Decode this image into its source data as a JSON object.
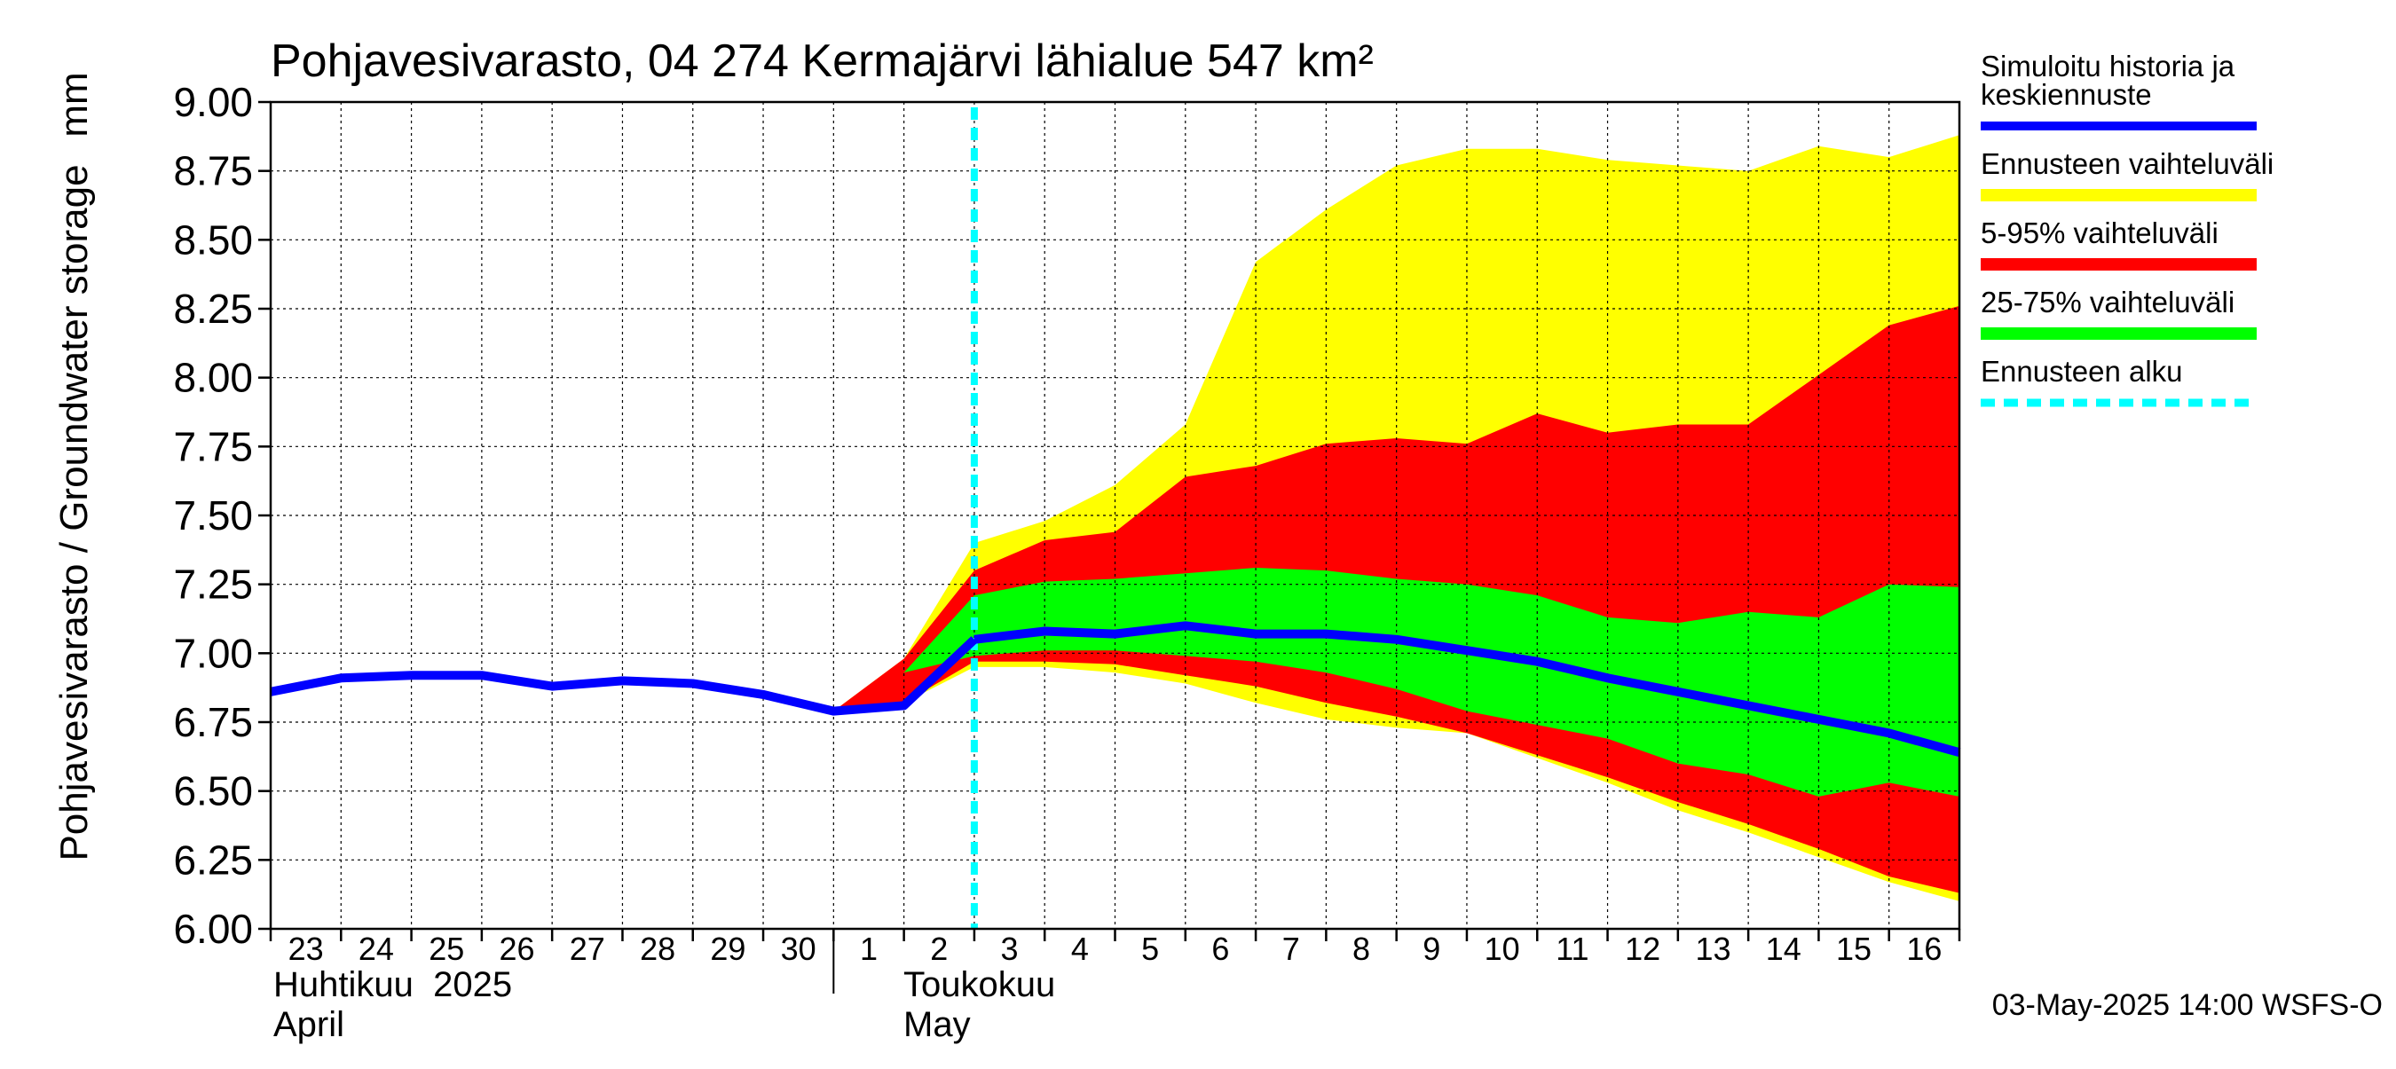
{
  "chart_data": {
    "type": "area",
    "title": "Pohjavesivarasto, 04 274 Kermajärvi lähialue 547 km²",
    "ylabel": "Pohjavesivarasto / Groundwater storage",
    "yunit": "mm",
    "ylim": [
      6.0,
      9.0
    ],
    "yticks": [
      "6.00",
      "6.25",
      "6.50",
      "6.75",
      "7.00",
      "7.25",
      "7.50",
      "7.75",
      "8.00",
      "8.25",
      "8.50",
      "8.75",
      "9.00"
    ],
    "grid": true,
    "legend_position": "right",
    "x_day_labels": [
      "23",
      "24",
      "25",
      "26",
      "27",
      "28",
      "29",
      "30",
      "1",
      "2",
      "3",
      "4",
      "5",
      "6",
      "7",
      "8",
      "9",
      "10",
      "11",
      "12",
      "13",
      "14",
      "15",
      "16"
    ],
    "x_dates": [
      "2025-04-23",
      "2025-04-24",
      "2025-04-25",
      "2025-04-26",
      "2025-04-27",
      "2025-04-28",
      "2025-04-29",
      "2025-04-30",
      "2025-05-01",
      "2025-05-02",
      "2025-05-03",
      "2025-05-04",
      "2025-05-05",
      "2025-05-06",
      "2025-05-07",
      "2025-05-08",
      "2025-05-09",
      "2025-05-10",
      "2025-05-11",
      "2025-05-12",
      "2025-05-13",
      "2025-05-14",
      "2025-05-15",
      "2025-05-16",
      "2025-05-17"
    ],
    "month_labels": [
      {
        "fi": "Huhtikuu  2025",
        "en": "April",
        "start_date": "2025-04-23"
      },
      {
        "fi": "Toukokuu",
        "en": "May",
        "start_date": "2025-05-02"
      }
    ],
    "forecast_start": "2025-05-03",
    "history": {
      "x": [
        "2025-04-23",
        "2025-04-24",
        "2025-04-25",
        "2025-04-26",
        "2025-04-27",
        "2025-04-28",
        "2025-04-29",
        "2025-04-30",
        "2025-05-01",
        "2025-05-02",
        "2025-05-03"
      ],
      "y": [
        6.86,
        6.91,
        6.92,
        6.92,
        6.88,
        6.9,
        6.89,
        6.85,
        6.79,
        6.81,
        7.05
      ]
    },
    "median": {
      "x": [
        "2025-05-03",
        "2025-05-04",
        "2025-05-05",
        "2025-05-06",
        "2025-05-07",
        "2025-05-08",
        "2025-05-09",
        "2025-05-10",
        "2025-05-11",
        "2025-05-12",
        "2025-05-13",
        "2025-05-14",
        "2025-05-15",
        "2025-05-16",
        "2025-05-17"
      ],
      "y": [
        7.05,
        7.08,
        7.07,
        7.1,
        7.07,
        7.07,
        7.05,
        7.01,
        6.97,
        6.91,
        6.86,
        6.81,
        6.76,
        6.71,
        6.64
      ]
    },
    "bands": {
      "x": [
        "2025-05-01",
        "2025-05-02",
        "2025-05-03",
        "2025-05-04",
        "2025-05-05",
        "2025-05-06",
        "2025-05-07",
        "2025-05-08",
        "2025-05-09",
        "2025-05-10",
        "2025-05-11",
        "2025-05-12",
        "2025-05-13",
        "2025-05-14",
        "2025-05-15",
        "2025-05-16",
        "2025-05-17"
      ],
      "range_min": [
        6.79,
        6.82,
        6.95,
        6.95,
        6.93,
        6.89,
        6.82,
        6.76,
        6.73,
        6.71,
        6.62,
        6.53,
        6.43,
        6.35,
        6.26,
        6.17,
        6.1
      ],
      "range_max": [
        6.79,
        6.98,
        7.4,
        7.48,
        7.61,
        7.83,
        8.42,
        8.61,
        8.77,
        8.83,
        8.83,
        8.79,
        8.77,
        8.75,
        8.84,
        8.8,
        8.88
      ],
      "p5": [
        6.79,
        6.82,
        6.97,
        6.97,
        6.96,
        6.92,
        6.88,
        6.82,
        6.77,
        6.71,
        6.63,
        6.55,
        6.46,
        6.38,
        6.29,
        6.19,
        6.13
      ],
      "p95": [
        6.79,
        6.98,
        7.3,
        7.41,
        7.44,
        7.64,
        7.68,
        7.76,
        7.78,
        7.76,
        7.87,
        7.8,
        7.83,
        7.83,
        8.01,
        8.19,
        8.26
      ],
      "p25": [
        6.79,
        6.93,
        6.99,
        7.01,
        7.01,
        6.99,
        6.97,
        6.93,
        6.87,
        6.79,
        6.74,
        6.69,
        6.6,
        6.56,
        6.48,
        6.53,
        6.48
      ],
      "p75": [
        6.79,
        6.93,
        7.21,
        7.26,
        7.27,
        7.29,
        7.31,
        7.3,
        7.27,
        7.25,
        7.21,
        7.13,
        7.11,
        7.15,
        7.13,
        7.25,
        7.24
      ]
    },
    "legend": [
      {
        "label": "Simuloitu historia ja keskiennuste",
        "color": "#0000ff",
        "style": "line"
      },
      {
        "label": "Ennusteen vaihteluväli",
        "color": "#ffff00",
        "style": "band"
      },
      {
        "label": "5-95% vaihteluväli",
        "color": "#ff0000",
        "style": "band"
      },
      {
        "label": "25-75% vaihteluväli",
        "color": "#00ff00",
        "style": "band"
      },
      {
        "label": "Ennusteen alku",
        "color": "#00ffff",
        "style": "dashed"
      }
    ],
    "footer": "03-May-2025 14:00 WSFS-O"
  }
}
